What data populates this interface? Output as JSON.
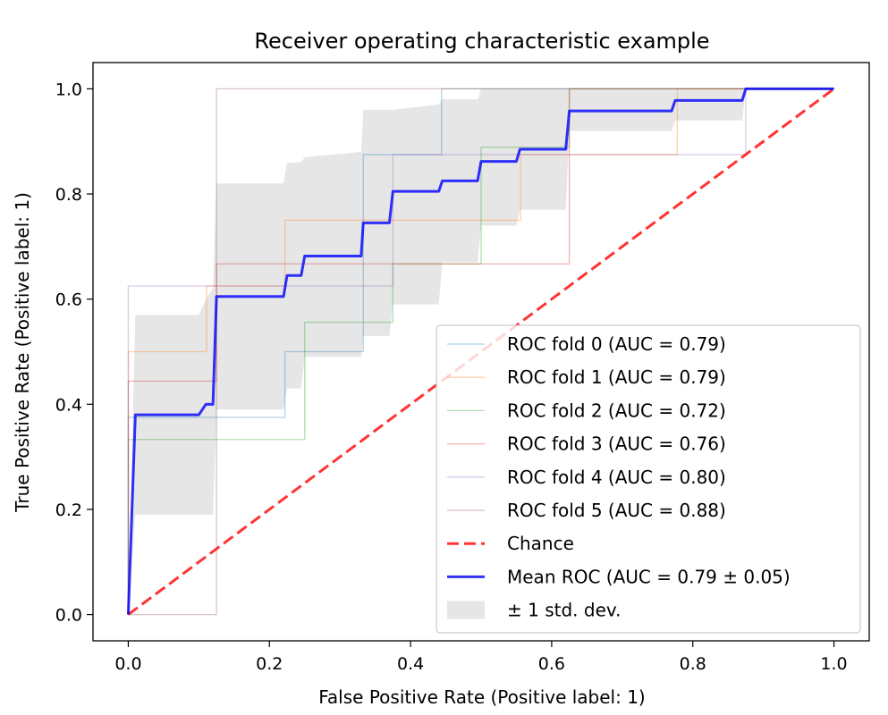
{
  "chart_data": {
    "type": "line",
    "title": "Receiver operating characteristic example",
    "xlabel": "False Positive Rate (Positive label: 1)",
    "ylabel": "True Positive Rate (Positive label: 1)",
    "xlim": [
      -0.05,
      1.05
    ],
    "ylim": [
      -0.05,
      1.05
    ],
    "xticks": [
      "0.0",
      "0.2",
      "0.4",
      "0.6",
      "0.8",
      "1.0"
    ],
    "yticks": [
      "0.0",
      "0.2",
      "0.4",
      "0.6",
      "0.8",
      "1.0"
    ],
    "grid": false,
    "legend_position": "lower-right",
    "series": [
      {
        "name": "ROC fold 0 (AUC = 0.79)",
        "color": "#1f77b4",
        "style": "thin-faint",
        "x": [
          0.0,
          0.0,
          0.0,
          0.222,
          0.222,
          0.333,
          0.333,
          0.444,
          0.444,
          0.556,
          0.556,
          0.778,
          0.778,
          1.0
        ],
        "y": [
          0.0,
          0.0,
          0.375,
          0.375,
          0.5,
          0.5,
          0.875,
          0.875,
          1.0,
          1.0,
          1.0,
          1.0,
          1.0,
          1.0
        ]
      },
      {
        "name": "ROC fold 1 (AUC = 0.79)",
        "color": "#ff7f0e",
        "style": "thin-faint",
        "x": [
          0.0,
          0.0,
          0.111,
          0.111,
          0.222,
          0.222,
          0.556,
          0.556,
          0.778,
          0.778,
          1.0
        ],
        "y": [
          0.0,
          0.5,
          0.5,
          0.625,
          0.625,
          0.75,
          0.75,
          0.875,
          0.875,
          1.0,
          1.0
        ]
      },
      {
        "name": "ROC fold 2 (AUC = 0.72)",
        "color": "#2ca02c",
        "style": "thin-faint",
        "x": [
          0.0,
          0.0,
          0.25,
          0.25,
          0.375,
          0.375,
          0.5,
          0.5,
          0.625,
          0.625,
          1.0
        ],
        "y": [
          0.0,
          0.333,
          0.333,
          0.556,
          0.556,
          0.667,
          0.667,
          0.889,
          0.889,
          1.0,
          1.0
        ]
      },
      {
        "name": "ROC fold 3 (AUC = 0.76)",
        "color": "#d62728",
        "style": "thin-faint",
        "x": [
          0.0,
          0.0,
          0.125,
          0.125,
          0.625,
          0.625,
          1.0
        ],
        "y": [
          0.0,
          0.444,
          0.444,
          0.667,
          0.667,
          1.0,
          1.0
        ]
      },
      {
        "name": "ROC fold 4 (AUC = 0.80)",
        "color": "#9467bd",
        "style": "thin-faint",
        "x": [
          0.0,
          0.0,
          0.375,
          0.375,
          0.875,
          0.875,
          1.0
        ],
        "y": [
          0.0,
          0.625,
          0.625,
          0.875,
          0.875,
          1.0,
          1.0
        ]
      },
      {
        "name": "ROC fold 5 (AUC = 0.88)",
        "color": "#8c564b",
        "style": "thin-faint",
        "x": [
          0.0,
          0.125,
          0.125,
          1.0
        ],
        "y": [
          0.0,
          0.0,
          1.0,
          1.0
        ]
      },
      {
        "name": "Chance",
        "color": "#ff0000",
        "style": "dashed",
        "x": [
          0.0,
          1.0
        ],
        "y": [
          0.0,
          1.0
        ]
      },
      {
        "name": "Mean ROC (AUC = 0.79 ± 0.05)",
        "color": "#0000ff",
        "style": "thick",
        "x": [
          0.0,
          0.01,
          0.02,
          0.1,
          0.11,
          0.12,
          0.125,
          0.22,
          0.225,
          0.245,
          0.25,
          0.33,
          0.333,
          0.37,
          0.375,
          0.44,
          0.445,
          0.495,
          0.5,
          0.55,
          0.555,
          0.62,
          0.625,
          0.77,
          0.775,
          0.87,
          0.875,
          1.0
        ],
        "y": [
          0.0,
          0.38,
          0.38,
          0.38,
          0.4,
          0.4,
          0.605,
          0.605,
          0.645,
          0.645,
          0.682,
          0.682,
          0.745,
          0.745,
          0.805,
          0.805,
          0.825,
          0.825,
          0.862,
          0.862,
          0.885,
          0.885,
          0.958,
          0.958,
          0.978,
          0.978,
          1.0,
          1.0
        ]
      }
    ],
    "std_band": {
      "name": "± 1 std. dev.",
      "color": "#808080",
      "x": [
        0.0,
        0.01,
        0.02,
        0.1,
        0.11,
        0.12,
        0.125,
        0.22,
        0.225,
        0.245,
        0.25,
        0.33,
        0.333,
        0.37,
        0.375,
        0.44,
        0.445,
        0.495,
        0.5,
        0.55,
        0.555,
        0.62,
        0.625,
        0.77,
        0.775,
        0.87,
        0.875,
        1.0
      ],
      "upper": [
        0.0,
        0.57,
        0.57,
        0.57,
        0.6,
        0.62,
        0.82,
        0.82,
        0.86,
        0.86,
        0.87,
        0.88,
        0.96,
        0.96,
        0.96,
        0.97,
        0.98,
        0.98,
        1.0,
        1.0,
        1.0,
        1.0,
        1.0,
        1.0,
        1.0,
        1.0,
        1.0,
        1.0
      ],
      "lower": [
        0.0,
        0.19,
        0.19,
        0.19,
        0.19,
        0.19,
        0.39,
        0.39,
        0.43,
        0.43,
        0.49,
        0.49,
        0.53,
        0.53,
        0.59,
        0.59,
        0.67,
        0.67,
        0.74,
        0.74,
        0.77,
        0.77,
        0.92,
        0.92,
        0.94,
        0.94,
        1.0,
        1.0
      ]
    }
  }
}
